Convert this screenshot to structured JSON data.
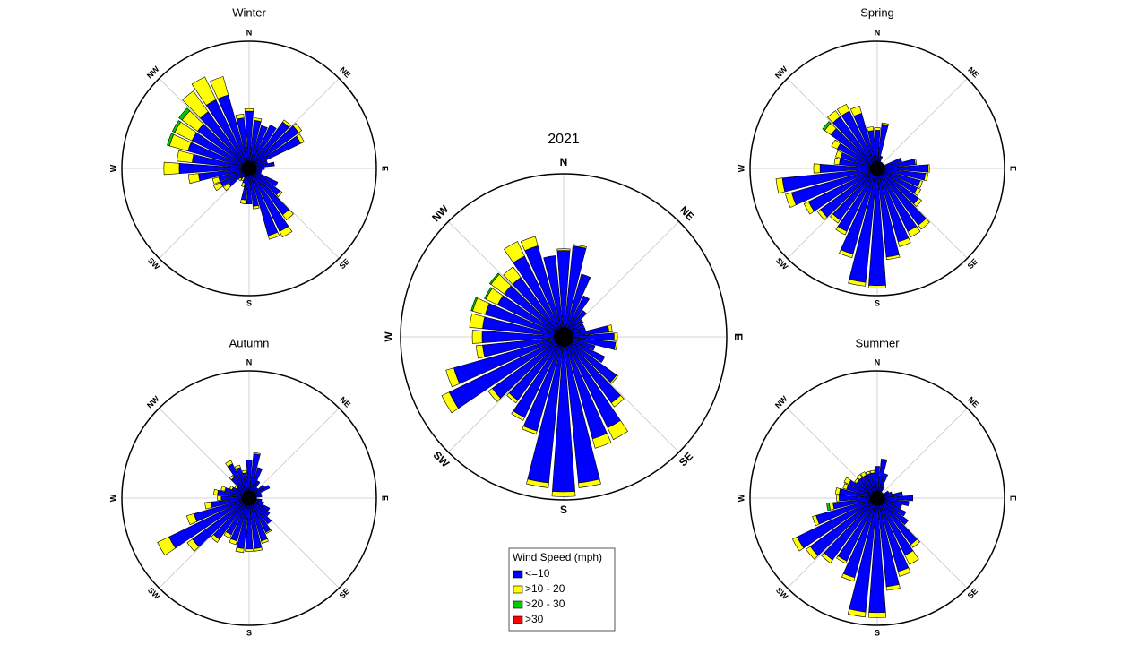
{
  "chart_data": [
    {
      "type": "rose",
      "title": "2021",
      "legend_title": "Wind Speed (mph)",
      "rlim": [
        0,
        100
      ],
      "compass_labels": [
        "N",
        "NE",
        "E",
        "SE",
        "S",
        "SW",
        "W",
        "NW"
      ],
      "directions": [
        0,
        10,
        20,
        30,
        40,
        50,
        60,
        70,
        80,
        90,
        100,
        110,
        120,
        130,
        140,
        150,
        160,
        170,
        180,
        190,
        200,
        210,
        220,
        230,
        240,
        250,
        260,
        270,
        280,
        290,
        300,
        310,
        320,
        330,
        340,
        350
      ],
      "series": [
        {
          "name": "<=10",
          "color": "#0000ff",
          "values": [
            53,
            56,
            40,
            28,
            20,
            15,
            14,
            14,
            28,
            31,
            32,
            20,
            28,
            40,
            50,
            62,
            65,
            90,
            95,
            90,
            60,
            55,
            48,
            54,
            78,
            70,
            50,
            50,
            50,
            50,
            45,
            45,
            45,
            55,
            58,
            50
          ]
        },
        {
          "name": ">10 - 20",
          "color": "#ffff00",
          "values": [
            1,
            1,
            0,
            0,
            0,
            0,
            0,
            0,
            2,
            2,
            1,
            0,
            0,
            1,
            3,
            8,
            6,
            3,
            3,
            3,
            2,
            2,
            2,
            3,
            5,
            5,
            4,
            6,
            8,
            8,
            8,
            10,
            8,
            10,
            6,
            0
          ]
        },
        {
          "name": ">20 - 30",
          "color": "#00cc00",
          "values": [
            0,
            0,
            0,
            0,
            0,
            0,
            0,
            0,
            0,
            0,
            0,
            0,
            0,
            0,
            0,
            0,
            0,
            0,
            0,
            0,
            0,
            0,
            0,
            0,
            0,
            0,
            0,
            0,
            0,
            1,
            1,
            1,
            0,
            0,
            0,
            0
          ]
        },
        {
          "name": ">30",
          "color": "#ff0000",
          "values": [
            0,
            0,
            0,
            0,
            0,
            0,
            0,
            0,
            0,
            0,
            0,
            0,
            0,
            0,
            0,
            0,
            0,
            0,
            0,
            0,
            0,
            0,
            0,
            0,
            0,
            0,
            0,
            0,
            0,
            0,
            0,
            0,
            0,
            0,
            0,
            0
          ]
        }
      ]
    },
    {
      "type": "rose",
      "title": "Winter",
      "rlim": [
        0,
        100
      ],
      "compass_labels": [
        "N",
        "NE",
        "E",
        "SE",
        "S",
        "SW",
        "W",
        "NW"
      ],
      "directions": [
        0,
        10,
        20,
        30,
        40,
        50,
        60,
        70,
        80,
        90,
        100,
        110,
        120,
        130,
        140,
        150,
        160,
        170,
        180,
        190,
        200,
        210,
        220,
        230,
        240,
        250,
        260,
        270,
        280,
        290,
        300,
        310,
        320,
        330,
        340,
        350
      ],
      "series": [
        {
          "color": "#0000ff",
          "values": [
            45,
            38,
            35,
            38,
            45,
            48,
            45,
            15,
            20,
            12,
            10,
            10,
            25,
            30,
            45,
            55,
            55,
            30,
            28,
            25,
            12,
            8,
            10,
            20,
            25,
            25,
            40,
            55,
            45,
            50,
            50,
            50,
            55,
            60,
            60,
            40
          ]
        },
        {
          "color": "#ffff00",
          "values": [
            2,
            2,
            0,
            0,
            2,
            3,
            3,
            0,
            0,
            0,
            0,
            0,
            0,
            2,
            5,
            5,
            3,
            2,
            0,
            3,
            3,
            3,
            2,
            5,
            6,
            5,
            8,
            12,
            12,
            15,
            15,
            15,
            20,
            20,
            15,
            3
          ]
        },
        {
          "color": "#00cc00",
          "values": [
            0,
            0,
            0,
            0,
            0,
            0,
            0,
            0,
            0,
            0,
            0,
            0,
            0,
            0,
            0,
            0,
            0,
            0,
            0,
            0,
            0,
            0,
            0,
            0,
            0,
            0,
            0,
            0,
            0,
            2,
            2,
            3,
            0,
            0,
            0,
            0
          ]
        },
        {
          "color": "#ff0000",
          "values": [
            0,
            0,
            0,
            0,
            0,
            0,
            0,
            0,
            0,
            0,
            0,
            0,
            0,
            0,
            0,
            0,
            0,
            0,
            0,
            0,
            0,
            0,
            0,
            0,
            0,
            0,
            0,
            0,
            0,
            0,
            0,
            0,
            0,
            0,
            0,
            0
          ]
        }
      ]
    },
    {
      "type": "rose",
      "title": "Spring",
      "rlim": [
        0,
        100
      ],
      "compass_labels": [
        "N",
        "NE",
        "E",
        "SE",
        "S",
        "SW",
        "W",
        "NW"
      ],
      "directions": [
        0,
        10,
        20,
        30,
        40,
        50,
        60,
        70,
        80,
        90,
        100,
        110,
        120,
        130,
        140,
        150,
        160,
        170,
        180,
        190,
        200,
        210,
        220,
        230,
        240,
        250,
        260,
        270,
        280,
        290,
        300,
        310,
        320,
        330,
        340,
        350
      ],
      "series": [
        {
          "color": "#0000ff",
          "values": [
            30,
            35,
            10,
            5,
            5,
            5,
            5,
            20,
            30,
            40,
            38,
            35,
            35,
            40,
            55,
            55,
            60,
            70,
            92,
            90,
            70,
            55,
            50,
            55,
            60,
            70,
            75,
            45,
            30,
            30,
            35,
            45,
            50,
            50,
            45,
            30
          ]
        },
        {
          "color": "#ffff00",
          "values": [
            2,
            1,
            0,
            0,
            0,
            0,
            0,
            0,
            1,
            1,
            2,
            2,
            3,
            3,
            4,
            5,
            4,
            2,
            2,
            3,
            3,
            3,
            3,
            3,
            4,
            5,
            5,
            5,
            4,
            4,
            5,
            6,
            6,
            6,
            6,
            3
          ]
        },
        {
          "color": "#00cc00",
          "values": [
            0,
            0,
            0,
            0,
            0,
            0,
            0,
            0,
            0,
            0,
            0,
            0,
            0,
            0,
            0,
            0,
            0,
            0,
            0,
            0,
            0,
            0,
            0,
            0,
            0,
            0,
            0,
            0,
            0,
            0,
            0,
            2,
            0,
            0,
            0,
            0
          ]
        },
        {
          "color": "#ff0000",
          "values": [
            0,
            0,
            0,
            0,
            0,
            0,
            0,
            0,
            0,
            0,
            0,
            0,
            0,
            0,
            0,
            0,
            0,
            0,
            0,
            0,
            0,
            0,
            0,
            0,
            0,
            0,
            0,
            0,
            0,
            0,
            0,
            0,
            0,
            0,
            0,
            0
          ]
        }
      ]
    },
    {
      "type": "rose",
      "title": "Autumn",
      "rlim": [
        0,
        100
      ],
      "compass_labels": [
        "N",
        "NE",
        "E",
        "SE",
        "S",
        "SW",
        "W",
        "NW"
      ],
      "directions": [
        0,
        10,
        20,
        30,
        40,
        50,
        60,
        70,
        80,
        90,
        100,
        110,
        120,
        130,
        140,
        150,
        160,
        170,
        180,
        190,
        200,
        210,
        220,
        230,
        240,
        250,
        260,
        270,
        280,
        290,
        300,
        310,
        320,
        330,
        340,
        350
      ],
      "series": [
        {
          "color": "#0000ff",
          "values": [
            30,
            35,
            25,
            15,
            10,
            15,
            18,
            10,
            10,
            5,
            10,
            12,
            18,
            20,
            25,
            30,
            35,
            40,
            40,
            40,
            35,
            32,
            40,
            55,
            70,
            45,
            30,
            22,
            25,
            20,
            15,
            12,
            20,
            30,
            25,
            20
          ]
        },
        {
          "color": "#ffff00",
          "values": [
            0,
            1,
            0,
            0,
            0,
            0,
            0,
            0,
            0,
            0,
            0,
            0,
            0,
            0,
            0,
            1,
            2,
            2,
            2,
            3,
            3,
            3,
            3,
            5,
            10,
            6,
            5,
            3,
            3,
            3,
            2,
            2,
            2,
            3,
            2,
            2
          ]
        },
        {
          "color": "#00cc00",
          "values": [
            0,
            0,
            0,
            0,
            0,
            0,
            0,
            0,
            0,
            0,
            0,
            0,
            0,
            0,
            0,
            0,
            0,
            0,
            0,
            0,
            0,
            0,
            0,
            0,
            0,
            0,
            0,
            0,
            0,
            0,
            0,
            0,
            0,
            0,
            0,
            0
          ]
        },
        {
          "color": "#ff0000",
          "values": [
            0,
            0,
            0,
            0,
            0,
            0,
            0,
            0,
            0,
            0,
            0,
            0,
            0,
            0,
            0,
            0,
            0,
            0,
            0,
            0,
            0,
            0,
            0,
            0,
            0,
            0,
            0,
            0,
            0,
            0,
            0,
            0,
            0,
            0,
            0,
            0
          ]
        }
      ]
    },
    {
      "type": "rose",
      "title": "Summer",
      "rlim": [
        0,
        100
      ],
      "compass_labels": [
        "N",
        "NE",
        "E",
        "SE",
        "S",
        "SW",
        "W",
        "NW"
      ],
      "directions": [
        0,
        10,
        20,
        30,
        40,
        50,
        60,
        70,
        80,
        90,
        100,
        110,
        120,
        130,
        140,
        150,
        160,
        170,
        180,
        190,
        200,
        210,
        220,
        230,
        240,
        250,
        260,
        270,
        280,
        290,
        300,
        310,
        320,
        330,
        340,
        350
      ],
      "series": [
        {
          "color": "#0000ff",
          "values": [
            25,
            30,
            20,
            10,
            5,
            5,
            10,
            12,
            20,
            28,
            25,
            20,
            25,
            30,
            45,
            50,
            60,
            70,
            90,
            90,
            65,
            55,
            60,
            65,
            70,
            50,
            35,
            30,
            30,
            25,
            25,
            20,
            20,
            20,
            20,
            20
          ]
        },
        {
          "color": "#ffff00",
          "values": [
            0,
            1,
            0,
            0,
            0,
            0,
            0,
            0,
            0,
            0,
            0,
            0,
            0,
            0,
            3,
            8,
            4,
            3,
            4,
            4,
            3,
            2,
            3,
            4,
            4,
            3,
            3,
            2,
            3,
            3,
            4,
            2,
            3,
            3,
            2,
            2
          ]
        },
        {
          "color": "#00cc00",
          "values": [
            0,
            0,
            0,
            0,
            0,
            0,
            0,
            0,
            0,
            0,
            0,
            0,
            0,
            0,
            0,
            0,
            0,
            0,
            0,
            0,
            0,
            0,
            0,
            0,
            0,
            0,
            2,
            0,
            0,
            0,
            0,
            0,
            0,
            0,
            0,
            0
          ]
        },
        {
          "color": "#ff0000",
          "values": [
            0,
            0,
            0,
            0,
            0,
            0,
            0,
            0,
            0,
            0,
            0,
            0,
            0,
            0,
            0,
            0,
            0,
            0,
            0,
            0,
            0,
            0,
            0,
            0,
            0,
            0,
            0,
            0,
            0,
            0,
            0,
            0,
            0,
            0,
            0,
            0
          ]
        }
      ]
    }
  ]
}
